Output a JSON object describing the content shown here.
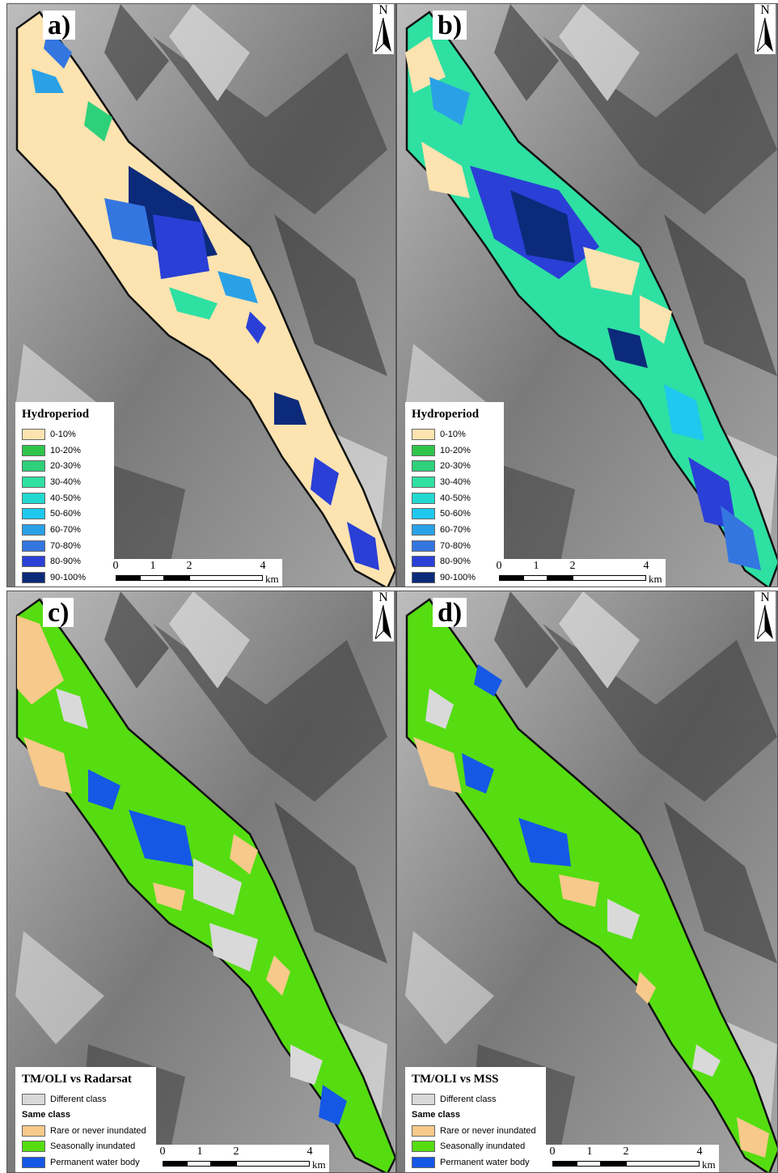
{
  "north_letter": "N",
  "panels": [
    {
      "id": "a",
      "label": "a)",
      "legend_title": "Hydroperiod",
      "legend_items": [
        {
          "label": "0-10%",
          "color": "#fde3b0"
        },
        {
          "label": "10-20%",
          "color": "#2fc44a"
        },
        {
          "label": "20-30%",
          "color": "#2ed07a"
        },
        {
          "label": "30-40%",
          "color": "#2ee0a2"
        },
        {
          "label": "40-50%",
          "color": "#22d9d0"
        },
        {
          "label": "50-60%",
          "color": "#1ec8ee"
        },
        {
          "label": "60-70%",
          "color": "#2aa1e6"
        },
        {
          "label": "70-80%",
          "color": "#3476e0"
        },
        {
          "label": "80-90%",
          "color": "#2a3fd6"
        },
        {
          "label": "90-100%",
          "color": "#0c2a7a"
        }
      ]
    },
    {
      "id": "b",
      "label": "b)",
      "legend_title": "Hydroperiod",
      "legend_items": [
        {
          "label": "0-10%",
          "color": "#fde3b0"
        },
        {
          "label": "10-20%",
          "color": "#2fc44a"
        },
        {
          "label": "20-30%",
          "color": "#2ed07a"
        },
        {
          "label": "30-40%",
          "color": "#2ee0a2"
        },
        {
          "label": "40-50%",
          "color": "#22d9d0"
        },
        {
          "label": "50-60%",
          "color": "#1ec8ee"
        },
        {
          "label": "60-70%",
          "color": "#2aa1e6"
        },
        {
          "label": "70-80%",
          "color": "#3476e0"
        },
        {
          "label": "80-90%",
          "color": "#2a3fd6"
        },
        {
          "label": "90-100%",
          "color": "#0c2a7a"
        }
      ]
    },
    {
      "id": "c",
      "label": "c)",
      "legend_title": "TM/OLI vs Radarsat",
      "diff_label": "Different class",
      "diff_color": "#d9d9d9",
      "same_label": "Same class",
      "same_items": [
        {
          "label": "Rare or never inundated",
          "color": "#f7c98a"
        },
        {
          "label": "Seasonally inundated",
          "color": "#55dd11"
        },
        {
          "label": "Permanent water body",
          "color": "#1558e6"
        }
      ]
    },
    {
      "id": "d",
      "label": "d)",
      "legend_title": "TM/OLI vs MSS",
      "diff_label": "Different class",
      "diff_color": "#d9d9d9",
      "same_label": "Same class",
      "same_items": [
        {
          "label": "Rare or never inundated",
          "color": "#f7c98a"
        },
        {
          "label": "Seasonally inundated",
          "color": "#55dd11"
        },
        {
          "label": "Permanent water body",
          "color": "#1558e6"
        }
      ]
    }
  ],
  "scalebar": {
    "ticks": [
      "0",
      "1",
      "2",
      "4"
    ],
    "unit": "km"
  },
  "colors": {
    "terrain_base": "#8f8f8f",
    "outline": "#111111"
  }
}
